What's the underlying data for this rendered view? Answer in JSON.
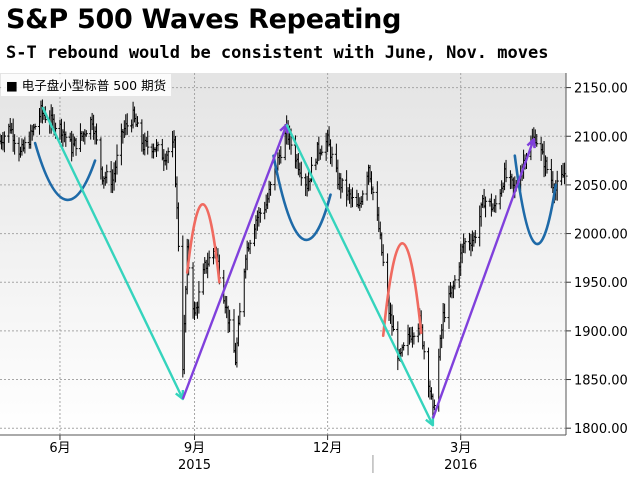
{
  "header": {
    "title": "S&P 500 Waves Repeating",
    "subtitle": "S-T rebound would be consistent with June, Nov. moves"
  },
  "chart_data": {
    "type": "line",
    "legend": {
      "label": "■ 电子盘小型标普 500 期货",
      "placement": "top-left"
    },
    "y_ticks": [
      2150,
      2100,
      2050,
      2000,
      1950,
      1900,
      1850,
      1800
    ],
    "y_tick_labels": [
      "2150.00",
      "2100.00",
      "2050.00",
      "2000.00",
      "1950.00",
      "1900.00",
      "1850.00",
      "1800.00"
    ],
    "ylim": [
      1793,
      2165
    ],
    "x_ticks": [
      {
        "label": "6月",
        "date": "2015-06-01"
      },
      {
        "label": "9月",
        "date": "2015-09-01"
      },
      {
        "label": "12月",
        "date": "2015-12-01"
      },
      {
        "label": "3月",
        "date": "2016-03-01"
      }
    ],
    "years": [
      {
        "label": "2015",
        "date": "2015-09-01"
      },
      {
        "label": "2016",
        "date": "2016-03-01"
      }
    ],
    "xlim": [
      "2015-04-21",
      "2016-05-12"
    ],
    "grid": true,
    "price_path": [
      [
        "2015-04-21",
        2095
      ],
      [
        "2015-04-28",
        2110
      ],
      [
        "2015-05-05",
        2082
      ],
      [
        "2015-05-12",
        2100
      ],
      [
        "2015-05-19",
        2125
      ],
      [
        "2015-05-26",
        2115
      ],
      [
        "2015-06-02",
        2108
      ],
      [
        "2015-06-09",
        2088
      ],
      [
        "2015-06-16",
        2100
      ],
      [
        "2015-06-23",
        2118
      ],
      [
        "2015-06-30",
        2060
      ],
      [
        "2015-07-07",
        2055
      ],
      [
        "2015-07-14",
        2105
      ],
      [
        "2015-07-21",
        2120
      ],
      [
        "2015-07-28",
        2090
      ],
      [
        "2015-08-04",
        2090
      ],
      [
        "2015-08-11",
        2080
      ],
      [
        "2015-08-18",
        2090
      ],
      [
        "2015-08-21",
        1990
      ],
      [
        "2015-08-24",
        1865
      ],
      [
        "2015-08-27",
        1980
      ],
      [
        "2015-09-01",
        1915
      ],
      [
        "2015-09-08",
        1965
      ],
      [
        "2015-09-15",
        1985
      ],
      [
        "2015-09-22",
        1930
      ],
      [
        "2015-09-29",
        1870
      ],
      [
        "2015-10-06",
        1980
      ],
      [
        "2015-10-13",
        2015
      ],
      [
        "2015-10-20",
        2030
      ],
      [
        "2015-10-27",
        2070
      ],
      [
        "2015-11-03",
        2105
      ],
      [
        "2015-11-10",
        2075
      ],
      [
        "2015-11-17",
        2050
      ],
      [
        "2015-11-24",
        2085
      ],
      [
        "2015-12-01",
        2095
      ],
      [
        "2015-12-08",
        2055
      ],
      [
        "2015-12-15",
        2040
      ],
      [
        "2015-12-22",
        2025
      ],
      [
        "2015-12-29",
        2070
      ],
      [
        "2016-01-05",
        2005
      ],
      [
        "2016-01-12",
        1920
      ],
      [
        "2016-01-19",
        1870
      ],
      [
        "2016-01-26",
        1895
      ],
      [
        "2016-02-02",
        1910
      ],
      [
        "2016-02-09",
        1840
      ],
      [
        "2016-02-11",
        1815
      ],
      [
        "2016-02-18",
        1915
      ],
      [
        "2016-02-25",
        1945
      ],
      [
        "2016-03-03",
        1990
      ],
      [
        "2016-03-10",
        1995
      ],
      [
        "2016-03-17",
        2035
      ],
      [
        "2016-03-24",
        2025
      ],
      [
        "2016-03-31",
        2060
      ],
      [
        "2016-04-07",
        2045
      ],
      [
        "2016-04-14",
        2080
      ],
      [
        "2016-04-21",
        2100
      ],
      [
        "2016-04-28",
        2070
      ],
      [
        "2016-05-05",
        2045
      ],
      [
        "2016-05-12",
        2065
      ]
    ],
    "annotations": {
      "trend_lines": [
        {
          "color": "#35d4bd",
          "from": [
            "2015-05-20",
            2130
          ],
          "to": [
            "2015-08-24",
            1830
          ]
        },
        {
          "color": "#8040dc",
          "from": [
            "2015-08-24",
            1830
          ],
          "to": [
            "2015-11-03",
            2112
          ]
        },
        {
          "color": "#35d4bd",
          "from": [
            "2015-11-03",
            2112
          ],
          "to": [
            "2016-02-11",
            1803
          ]
        },
        {
          "color": "#8040dc",
          "from": [
            "2016-02-11",
            1810
          ],
          "to": [
            "2016-04-20",
            2097
          ]
        }
      ],
      "arcs": [
        {
          "color": "#1e6aa8",
          "shape": "trough",
          "from": [
            "2015-05-15",
            2093
          ],
          "to": [
            "2015-06-25",
            2075
          ],
          "extreme": 2035
        },
        {
          "color": "#f06a60",
          "shape": "peak",
          "from": [
            "2015-08-27",
            1960
          ],
          "to": [
            "2015-09-18",
            1950
          ],
          "extreme": 2030
        },
        {
          "color": "#1e6aa8",
          "shape": "trough",
          "from": [
            "2015-10-25",
            2080
          ],
          "to": [
            "2015-12-03",
            2040
          ],
          "extreme": 1995
        },
        {
          "color": "#f06a60",
          "shape": "peak",
          "from": [
            "2016-01-08",
            1895
          ],
          "to": [
            "2016-02-03",
            1898
          ],
          "extreme": 1990
        },
        {
          "color": "#1e6aa8",
          "shape": "trough",
          "from": [
            "2016-04-07",
            2080
          ],
          "to": [
            "2016-05-05",
            2050
          ],
          "extreme": 1990
        }
      ]
    },
    "colors": {
      "price": "#000000",
      "grid": "#a6a6a6",
      "plot_bg_top": "#e4e4e4",
      "plot_bg_bottom": "#ffffff"
    }
  }
}
